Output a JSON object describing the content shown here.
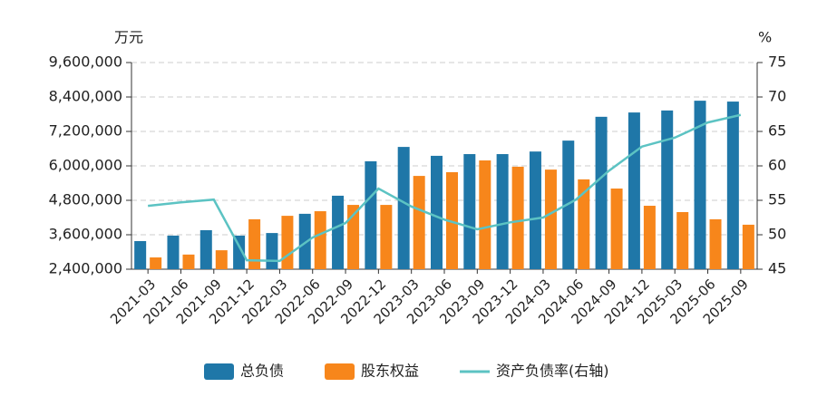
{
  "chart_data": {
    "type": "bar-line",
    "y_unit": "万元",
    "y2_unit": "%",
    "categories": [
      "2021-03",
      "2021-06",
      "2021-09",
      "2021-12",
      "2022-03",
      "2022-06",
      "2022-09",
      "2022-12",
      "2023-03",
      "2023-06",
      "2023-09",
      "2023-12",
      "2024-03",
      "2024-06",
      "2024-09",
      "2024-12",
      "2025-03",
      "2025-06",
      "2025-09"
    ],
    "series": [
      {
        "name": "总负债",
        "type": "bar",
        "color": "#1f77a8",
        "values": [
          3380000,
          3570000,
          3760000,
          3570000,
          3660000,
          4330000,
          4960000,
          6160000,
          6660000,
          6350000,
          6410000,
          6410000,
          6500000,
          6880000,
          7710000,
          7860000,
          7930000,
          8270000,
          8240000
        ]
      },
      {
        "name": "股东权益",
        "type": "bar",
        "color": "#f7861b",
        "values": [
          2810000,
          2910000,
          3060000,
          4140000,
          4260000,
          4420000,
          4640000,
          4640000,
          5650000,
          5780000,
          6190000,
          5970000,
          5870000,
          5530000,
          5210000,
          4610000,
          4390000,
          4140000,
          3950000
        ]
      },
      {
        "name": "资产负债率(右轴)",
        "type": "line",
        "axis": "y2",
        "color": "#5cc3c3",
        "values": [
          54.2,
          54.7,
          55.1,
          46.3,
          46.2,
          49.6,
          51.7,
          56.7,
          54.1,
          52.2,
          50.8,
          51.8,
          52.5,
          55.1,
          59.3,
          62.8,
          64.1,
          66.3,
          67.4
        ]
      }
    ],
    "ylim": [
      2400000,
      9600000
    ],
    "yticks": [
      {
        "value": 2400000,
        "label": "2,400,000"
      },
      {
        "value": 3600000,
        "label": "3,600,000"
      },
      {
        "value": 4800000,
        "label": "4,800,000"
      },
      {
        "value": 6000000,
        "label": "6,000,000"
      },
      {
        "value": 7200000,
        "label": "7,200,000"
      },
      {
        "value": 8400000,
        "label": "8,400,000"
      },
      {
        "value": 9600000,
        "label": "9,600,000"
      }
    ],
    "y2lim": [
      45,
      75
    ],
    "y2ticks": [
      45,
      50,
      55,
      60,
      65,
      70,
      75
    ],
    "grid": true,
    "legend": "bottom"
  }
}
